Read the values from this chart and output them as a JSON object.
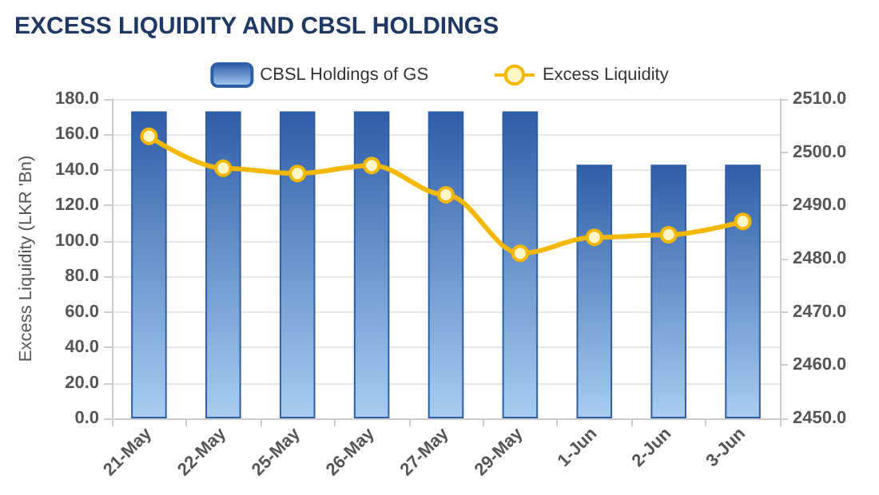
{
  "chart_data": {
    "type": "bar",
    "title": "EXCESS LIQUIDITY AND CBSL HOLDINGS",
    "ylabel": "Excess Liquidity (LKR 'Bn)",
    "categories": [
      "21-May",
      "22-May",
      "25-May",
      "26-May",
      "27-May",
      "29-May",
      "1-Jun",
      "2-Jun",
      "3-Jun"
    ],
    "series": [
      {
        "name": "CBSL Holdings of GS",
        "color": "#2f5ea8",
        "values": [
          173,
          173,
          173,
          173,
          173,
          173,
          143,
          143,
          143
        ]
      },
      {
        "name": "Excess Liquidity",
        "type": "line",
        "axis": "y2",
        "color": "#f5b800",
        "values": [
          2503,
          2497,
          2496,
          2497.5,
          2492,
          2481,
          2484,
          2484.5,
          2487
        ]
      }
    ],
    "ylim": [
      0,
      180
    ],
    "yticks": [
      {
        "value": 0,
        "label": "0.0"
      },
      {
        "value": 20,
        "label": "20.0"
      },
      {
        "value": 40,
        "label": "40.0"
      },
      {
        "value": 60,
        "label": "60.0"
      },
      {
        "value": 80,
        "label": "80.0"
      },
      {
        "value": 100,
        "label": "100.0"
      },
      {
        "value": 120,
        "label": "120.0"
      },
      {
        "value": 140,
        "label": "140.0"
      },
      {
        "value": 160,
        "label": "160.0"
      },
      {
        "value": 180,
        "label": "180.0"
      }
    ],
    "y2lim": [
      2450,
      2510
    ],
    "y2ticks": [
      {
        "value": 2450,
        "label": "2450.0"
      },
      {
        "value": 2460,
        "label": "2460.0"
      },
      {
        "value": 2470,
        "label": "2470.0"
      },
      {
        "value": 2480,
        "label": "2480.0"
      },
      {
        "value": 2490,
        "label": "2490.0"
      },
      {
        "value": 2500,
        "label": "2500.0"
      },
      {
        "value": 2510,
        "label": "2510.0"
      }
    ],
    "grid": "y",
    "legend": "top",
    "marker": "circle"
  }
}
